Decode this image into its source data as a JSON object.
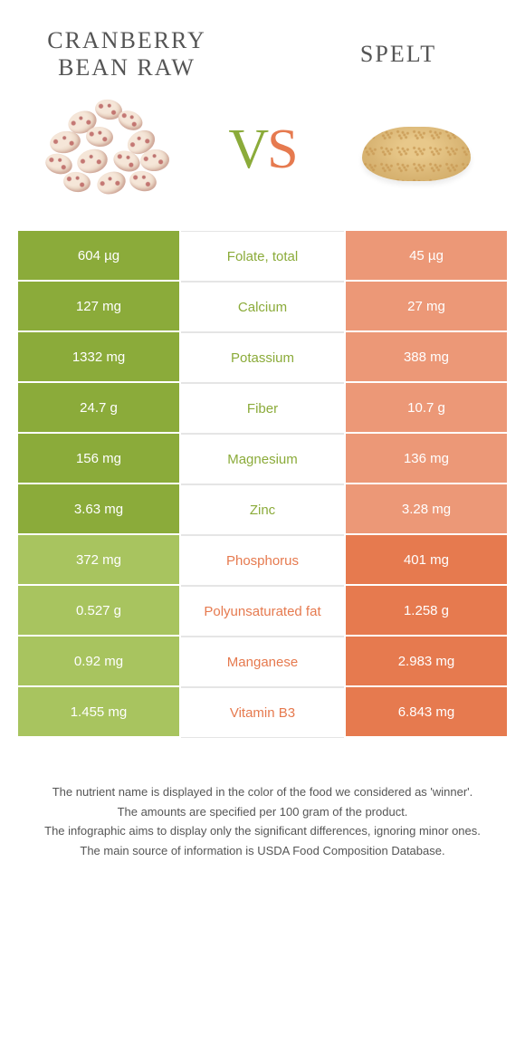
{
  "header": {
    "left_title": "Cranberry bean raw",
    "right_title": "Spelt",
    "vs_v": "V",
    "vs_s": "S"
  },
  "colors": {
    "left_food": "#8bab3a",
    "right_food": "#e67a4f",
    "left_light": "#a8c45f",
    "right_light": "#ec9877",
    "text_dark": "#555555",
    "background": "#ffffff"
  },
  "table": {
    "rows": [
      {
        "left": "604 µg",
        "name": "Folate, total",
        "right": "45 µg",
        "winner": "left"
      },
      {
        "left": "127 mg",
        "name": "Calcium",
        "right": "27 mg",
        "winner": "left"
      },
      {
        "left": "1332 mg",
        "name": "Potassium",
        "right": "388 mg",
        "winner": "left"
      },
      {
        "left": "24.7 g",
        "name": "Fiber",
        "right": "10.7 g",
        "winner": "left"
      },
      {
        "left": "156 mg",
        "name": "Magnesium",
        "right": "136 mg",
        "winner": "left"
      },
      {
        "left": "3.63 mg",
        "name": "Zinc",
        "right": "3.28 mg",
        "winner": "left"
      },
      {
        "left": "372 mg",
        "name": "Phosphorus",
        "right": "401 mg",
        "winner": "right"
      },
      {
        "left": "0.527 g",
        "name": "Polyunsaturated fat",
        "right": "1.258 g",
        "winner": "right"
      },
      {
        "left": "0.92 mg",
        "name": "Manganese",
        "right": "2.983 mg",
        "winner": "right"
      },
      {
        "left": "1.455 mg",
        "name": "Vitamin B3",
        "right": "6.843 mg",
        "winner": "right"
      }
    ]
  },
  "footer": {
    "line1": "The nutrient name is displayed in the color of the food we considered as 'winner'.",
    "line2": "The amounts are specified per 100 gram of the product.",
    "line3": "The infographic aims to display only the significant differences, ignoring minor ones.",
    "line4": "The main source of information is USDA Food Composition Database."
  }
}
